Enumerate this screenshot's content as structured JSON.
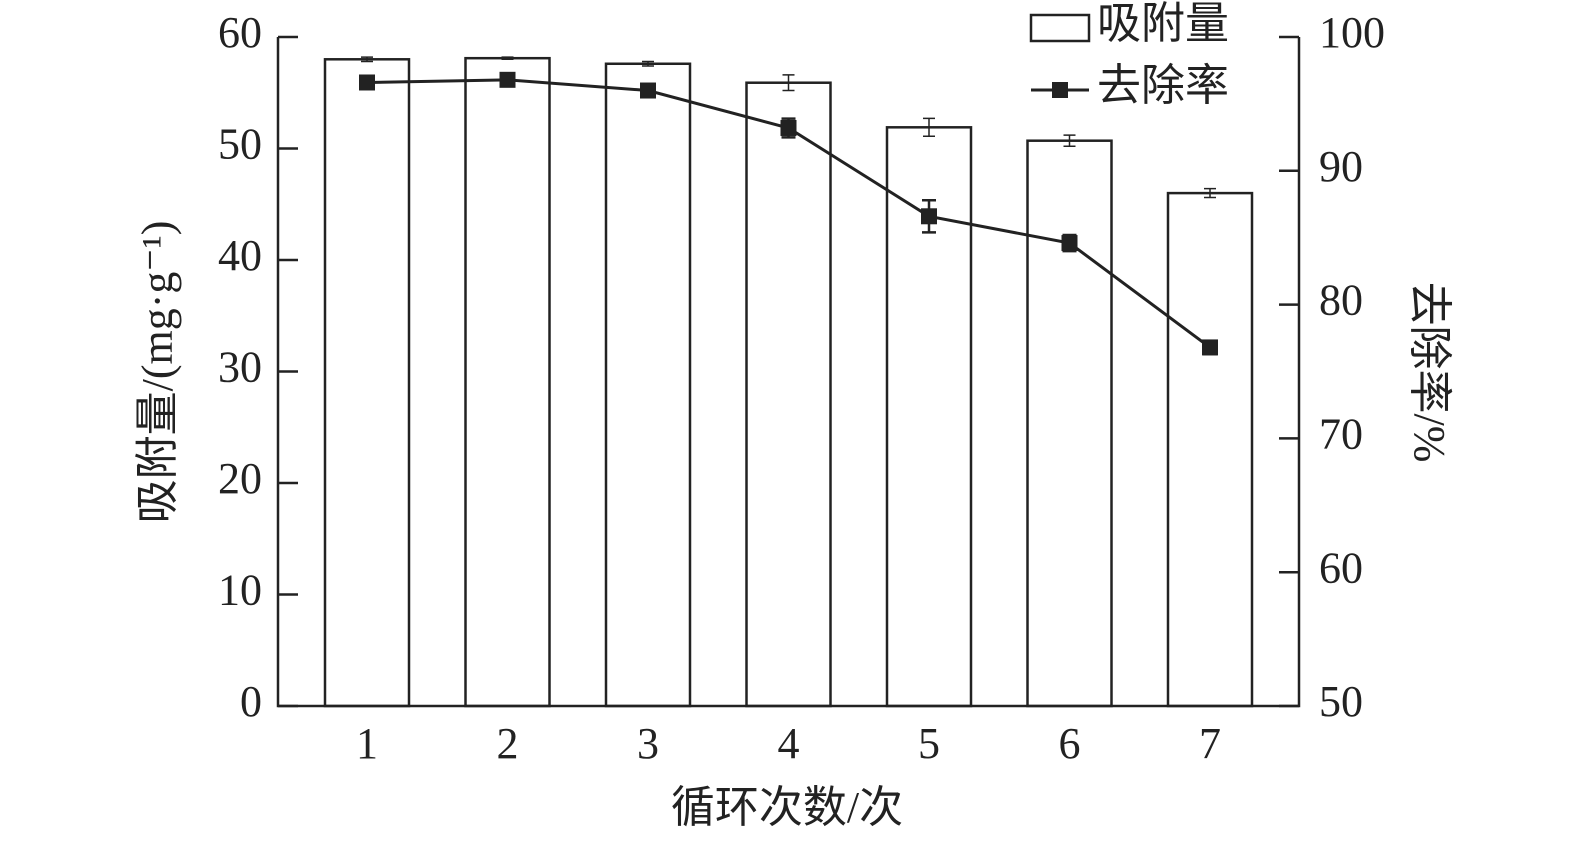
{
  "chart_data": {
    "type": "bar-line",
    "x_label": "循环次数/次",
    "y_label": "吸附量/(mg·g⁻¹)",
    "y2_label": "去除率/%",
    "categories": [
      "1",
      "2",
      "3",
      "4",
      "5",
      "6",
      "7"
    ],
    "series": [
      {
        "name": "吸附量",
        "type": "bar",
        "color": "#ffffff",
        "values": [
          58.0,
          58.1,
          57.6,
          55.9,
          51.9,
          50.7,
          46.0
        ],
        "errors": [
          0.2,
          0.1,
          0.2,
          0.7,
          0.8,
          0.5,
          0.4
        ]
      },
      {
        "name": "去除率",
        "type": "line",
        "axis": "y2",
        "color": "#222222",
        "values": [
          96.6,
          96.8,
          96.0,
          93.2,
          86.6,
          84.6,
          76.8
        ],
        "errors": [
          0.1,
          0.1,
          0.2,
          0.7,
          1.2,
          0.6,
          0.5
        ]
      }
    ],
    "ylim": [
      0,
      60
    ],
    "yticks": [
      0,
      10,
      20,
      30,
      40,
      50,
      60
    ],
    "y2lim": [
      50,
      100
    ],
    "y2ticks": [
      50,
      60,
      70,
      80,
      90,
      100
    ],
    "legend": "top-right"
  }
}
